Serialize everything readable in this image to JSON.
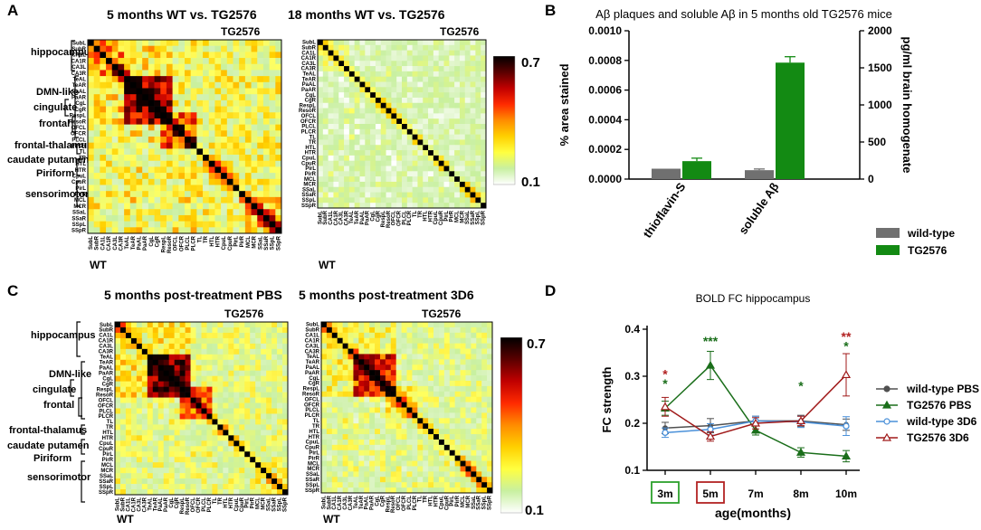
{
  "panels": {
    "A": {
      "label": "A",
      "left_title": "5 months WT vs. TG2576",
      "right_title": "18 months WT vs. TG2576",
      "tg_label": "TG2576",
      "wt_label": "WT"
    },
    "B": {
      "label": "B"
    },
    "C": {
      "label": "C",
      "left_title": "5 months post-treatment PBS",
      "right_title": "5 months post-treatment 3D6",
      "tg_label": "TG2576",
      "wt_label": "WT"
    },
    "D": {
      "label": "D"
    }
  },
  "regions": [
    "hippocampus",
    "DMN-like",
    "cingulate",
    "frontal",
    "frontal-thalamus",
    "caudate putamen",
    "Piriform",
    "sensorimotor"
  ],
  "roi_labels": [
    "SubL",
    "SubR",
    "CA1L",
    "CA1R",
    "CA3L",
    "CA3R",
    "TeAL",
    "TeAR",
    "PaAL",
    "PaAR",
    "CgL",
    "CgR",
    "RespL",
    "ResoR",
    "OFCL",
    "OFCR",
    "PLCL",
    "PLCR",
    "TL",
    "TR",
    "HTL",
    "HTR",
    "CpuL",
    "CpuR",
    "PirL",
    "PirR",
    "MCL",
    "MCR",
    "SSaL",
    "SSaR",
    "SSpL",
    "SSpR"
  ],
  "colorbar": {
    "max_label": "0.7",
    "min_label": "0.1",
    "colors": [
      "#000000",
      "#5a0000",
      "#c00000",
      "#ff2a00",
      "#ff8c00",
      "#ffd000",
      "#ffff40",
      "#c8f0a0",
      "#ffffff"
    ]
  },
  "chart_data": [
    {
      "panel": "B",
      "type": "bar",
      "title": "Aβ plaques and soluble Aβ in 5 months old TG2576 mice",
      "categories": [
        "thioflavin-S",
        "soluble Aβ"
      ],
      "ylabel": "% area stained",
      "ylim": [
        0,
        0.001
      ],
      "yticks": [
        "0.0000",
        "0.0002",
        "0.0004",
        "0.0006",
        "0.0008",
        "0.0010"
      ],
      "y2label": "pg/ml brain homogenate",
      "y2lim": [
        0,
        2000
      ],
      "y2ticks": [
        "0",
        "500",
        "1000",
        "1500",
        "2000"
      ],
      "series": [
        {
          "name": "wild-type",
          "color": "#707070",
          "values": [
            7e-05,
            6e-05
          ],
          "errors": [
            0,
            8e-06
          ]
        },
        {
          "name": "TG2576",
          "color": "#138a13",
          "values": [
            0.000121,
            0.000785
          ],
          "errors": [
            2e-05,
            4e-05
          ]
        }
      ]
    },
    {
      "panel": "D",
      "type": "line",
      "title": "BOLD FC hippocampus",
      "xlabel": "age(months)",
      "ylabel": "FC strength",
      "categories": [
        "3m",
        "5m",
        "7m",
        "8m",
        "10m"
      ],
      "category_box_colors": [
        "#2ca02c",
        "#b22222",
        null,
        null,
        null
      ],
      "ylim": [
        0.1,
        0.4
      ],
      "yticks": [
        "0.1",
        "0.2",
        "0.3",
        "0.4"
      ],
      "series": [
        {
          "name": "wild-type PBS",
          "color": "#505050",
          "marker": "circle",
          "values": [
            0.19,
            0.195,
            0.205,
            0.205,
            0.197
          ],
          "errors": [
            0.012,
            0.015,
            0.01,
            0.012,
            0.012
          ]
        },
        {
          "name": "TG2576 PBS",
          "color": "#1a6e1a",
          "marker": "triangle",
          "values": [
            0.232,
            0.323,
            0.185,
            0.138,
            0.13
          ],
          "errors": [
            0.015,
            0.03,
            0.01,
            0.01,
            0.012
          ]
        },
        {
          "name": "wild-type 3D6",
          "color": "#4a90d9",
          "marker": "circle-open",
          "values": [
            0.18,
            0.187,
            0.205,
            0.203,
            0.194
          ],
          "errors": [
            0.01,
            0.012,
            0.01,
            0.012,
            0.02
          ]
        },
        {
          "name": "TG2576 3D6",
          "color": "#a01a1a",
          "marker": "triangle-open",
          "values": [
            0.235,
            0.172,
            0.2,
            0.205,
            0.303
          ],
          "errors": [
            0.02,
            0.01,
            0.012,
            0.01,
            0.045
          ]
        }
      ],
      "annotations": [
        {
          "x": "3m",
          "y": 0.295,
          "text": "*",
          "color": "#b22222"
        },
        {
          "x": "3m",
          "y": 0.275,
          "text": "*",
          "color": "#1a6e1a"
        },
        {
          "x": "5m",
          "y": 0.365,
          "text": "***",
          "color": "#1a6e1a"
        },
        {
          "x": "8m",
          "y": 0.27,
          "text": "*",
          "color": "#1a6e1a"
        },
        {
          "x": "10m",
          "y": 0.375,
          "text": "**",
          "color": "#b22222"
        },
        {
          "x": "10m",
          "y": 0.355,
          "text": "*",
          "color": "#1a6e1a"
        }
      ]
    }
  ]
}
